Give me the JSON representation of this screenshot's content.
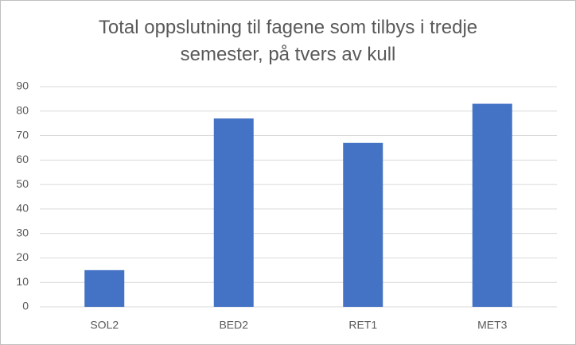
{
  "chart_data": {
    "type": "bar",
    "title": "Total oppslutning til fagene som tilbys i tredje semester, på tvers av kull",
    "categories": [
      "SOL2",
      "BED2",
      "RET1",
      "MET3"
    ],
    "values": [
      15,
      77,
      67,
      83
    ],
    "color": "#4472c4",
    "ylim": [
      0,
      90
    ],
    "yticks": [
      0,
      10,
      20,
      30,
      40,
      50,
      60,
      70,
      80,
      90
    ],
    "grid": true
  }
}
